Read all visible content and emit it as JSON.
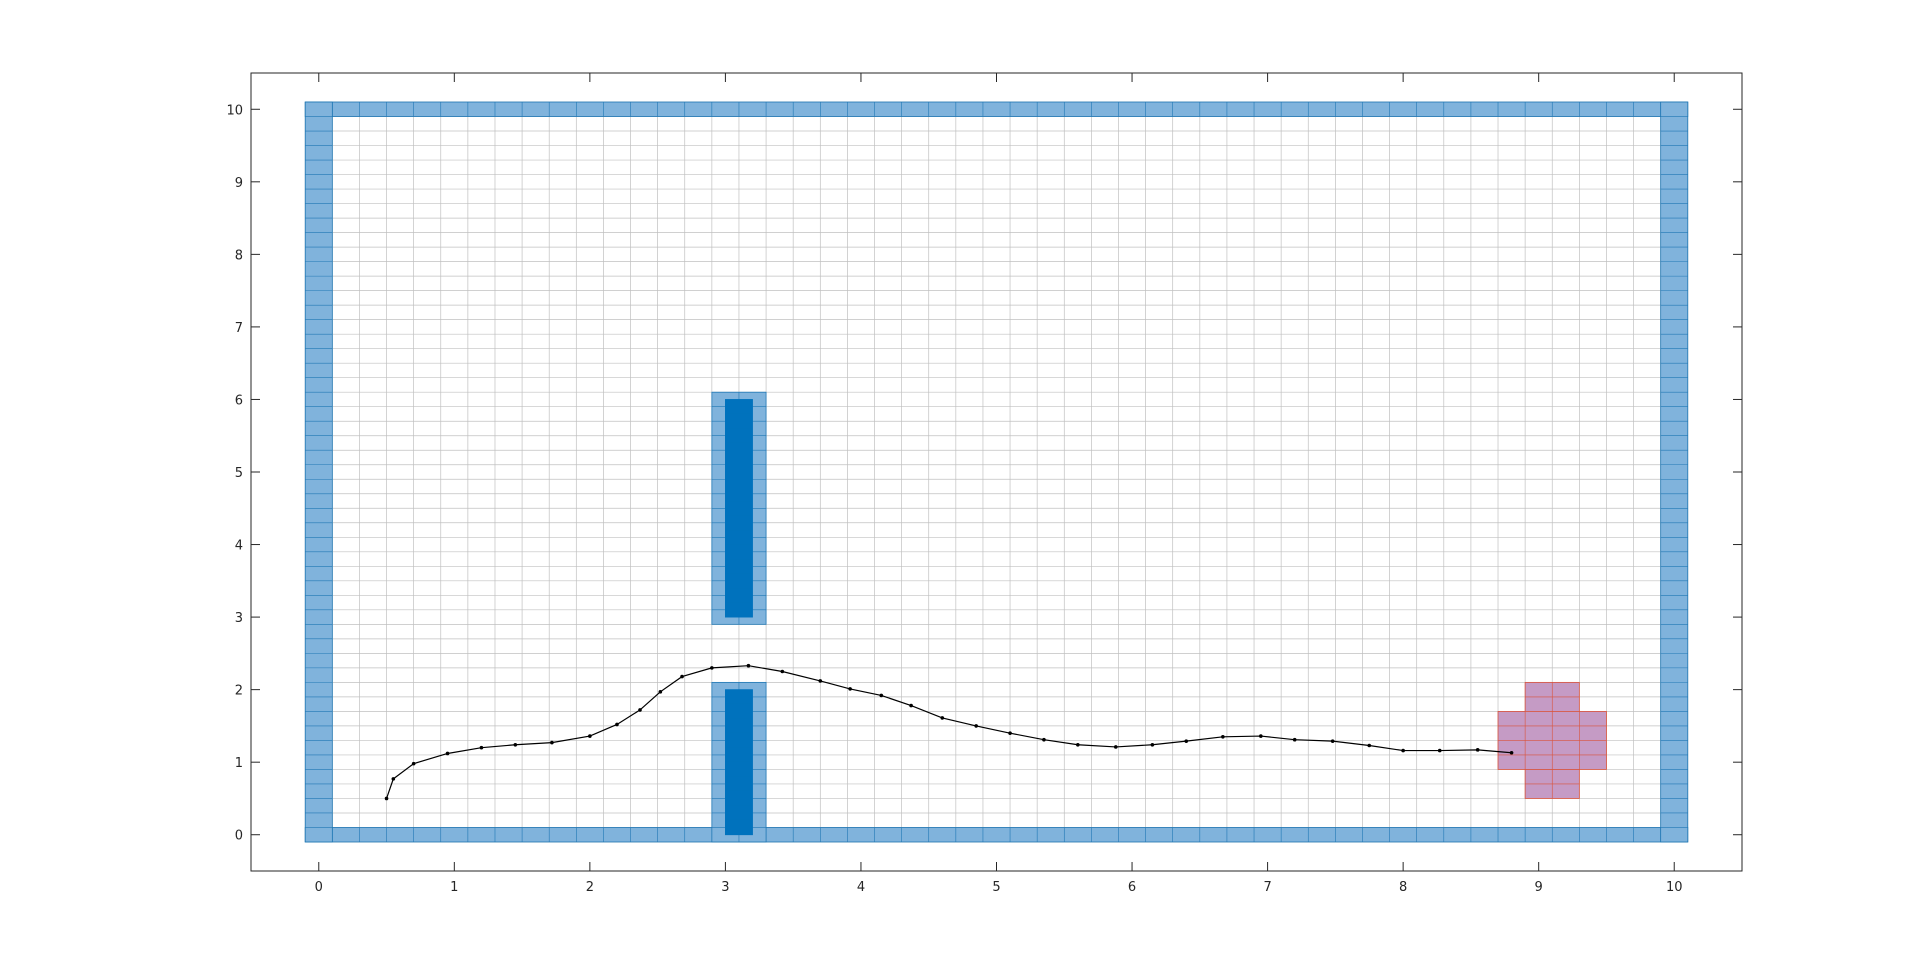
{
  "chart_data": {
    "type": "scatter",
    "title": "",
    "xlabel": "",
    "ylabel": "",
    "xlim": [
      -0.5,
      10.5
    ],
    "ylim": [
      -0.5,
      10.5
    ],
    "xticks": [
      "0",
      "1",
      "2",
      "3",
      "4",
      "5",
      "6",
      "7",
      "8",
      "9",
      "10"
    ],
    "yticks": [
      "0",
      "1",
      "2",
      "3",
      "4",
      "5",
      "6",
      "7",
      "8",
      "9",
      "10"
    ],
    "grid": true,
    "grid_cell_size": {
      "dx": 0.2,
      "dy": 0.2
    },
    "occupancy_cell_size": {
      "dx": 0.2,
      "dy": 0.2
    },
    "colors": {
      "inflated_obstacle": "#80B3DC",
      "inflated_obstacle_edge": "#1F77B4",
      "obstacle": "#0072BD",
      "goal_region": "#C59BC5",
      "goal_edge": "#D9533B",
      "path": "#000000",
      "grid_line": "#C0C0C0"
    },
    "inflated_obstacles": [
      {
        "name": "bottom-wall",
        "x0": -0.1,
        "x1": 10.1,
        "y0": -0.1,
        "y1": 0.1
      },
      {
        "name": "top-wall",
        "x0": -0.1,
        "x1": 10.1,
        "y0": 9.9,
        "y1": 10.1
      },
      {
        "name": "left-wall",
        "x0": -0.1,
        "x1": 0.1,
        "y0": -0.1,
        "y1": 10.1
      },
      {
        "name": "right-wall",
        "x0": 9.9,
        "x1": 10.1,
        "y0": -0.1,
        "y1": 10.1
      },
      {
        "name": "upper-bar",
        "x0": 2.9,
        "x1": 3.3,
        "y0": 2.9,
        "y1": 6.1
      },
      {
        "name": "lower-bar",
        "x0": 2.9,
        "x1": 3.3,
        "y0": -0.1,
        "y1": 2.1
      }
    ],
    "obstacles": [
      {
        "name": "upper-bar-core",
        "x0": 3.0,
        "x1": 3.2,
        "y0": 3.0,
        "y1": 6.0
      },
      {
        "name": "lower-bar-core",
        "x0": 3.0,
        "x1": 3.2,
        "y0": 0.0,
        "y1": 2.0
      }
    ],
    "goal_region": [
      {
        "x0": 8.9,
        "x1": 9.3,
        "y0": 1.7,
        "y1": 2.1
      },
      {
        "x0": 8.7,
        "x1": 9.5,
        "y0": 0.9,
        "y1": 1.7
      },
      {
        "x0": 8.9,
        "x1": 9.3,
        "y0": 0.5,
        "y1": 0.9
      }
    ],
    "series": [
      {
        "x": [
          0.5,
          0.55,
          0.7,
          0.95,
          1.2,
          1.45,
          1.72,
          2.0,
          2.2,
          2.37,
          2.52,
          2.68,
          2.9,
          3.17,
          3.42,
          3.7,
          3.92,
          4.15,
          4.37,
          4.6,
          4.85,
          5.1,
          5.35,
          5.6,
          5.88,
          6.15,
          6.4,
          6.67,
          6.95,
          7.2,
          7.48,
          7.75,
          8.0,
          8.27,
          8.55,
          8.8
        ],
        "y": [
          0.5,
          0.77,
          0.98,
          1.12,
          1.2,
          1.24,
          1.27,
          1.36,
          1.52,
          1.72,
          1.97,
          2.18,
          2.3,
          2.33,
          2.25,
          2.12,
          2.01,
          1.92,
          1.78,
          1.61,
          1.5,
          1.4,
          1.31,
          1.24,
          1.21,
          1.24,
          1.29,
          1.35,
          1.36,
          1.31,
          1.29,
          1.23,
          1.16,
          1.16,
          1.17,
          1.13
        ]
      }
    ]
  }
}
